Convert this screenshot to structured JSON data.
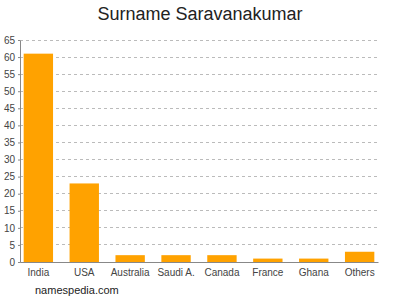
{
  "chart_data": {
    "type": "bar",
    "title": "Surname Saravanakumar",
    "categories": [
      "India",
      "USA",
      "Australia",
      "Saudi A.",
      "Canada",
      "France",
      "Ghana",
      "Others"
    ],
    "values": [
      61,
      23,
      2,
      2,
      2,
      1,
      1,
      3
    ],
    "color": "#ffa200",
    "ylim": [
      0,
      65
    ],
    "yticks": [
      0,
      5,
      10,
      15,
      20,
      25,
      30,
      35,
      40,
      45,
      50,
      55,
      60,
      65
    ],
    "grid": true,
    "annotations": [
      "namespedia.com"
    ]
  }
}
